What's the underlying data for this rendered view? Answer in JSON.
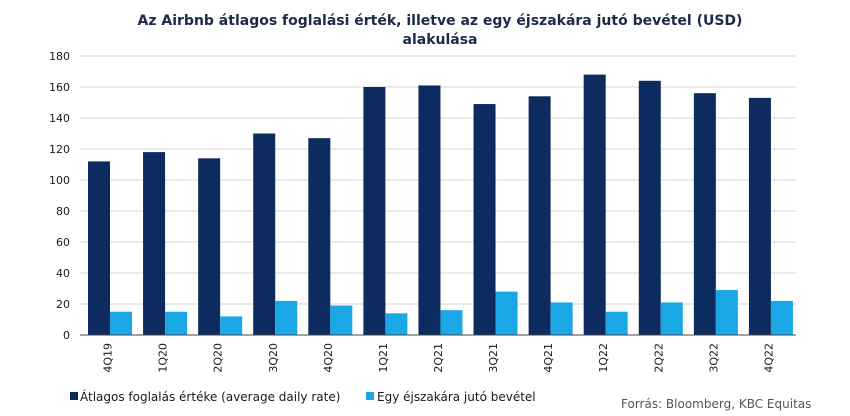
{
  "chart_data": {
    "type": "bar",
    "title_line1": "Az Airbnb átlagos foglalási érték, illetve  az egy éjszakára jutó bevétel  (USD)",
    "title_line2": "alakulása",
    "categories": [
      "4Q19",
      "1Q20",
      "2Q20",
      "3Q20",
      "4Q20",
      "1Q21",
      "2Q21",
      "3Q21",
      "4Q21",
      "1Q22",
      "2Q22",
      "3Q22",
      "4Q22"
    ],
    "series": [
      {
        "name": "Átlagos foglalás értéke (average daily rate)",
        "color": "#0d2b5e",
        "values": [
          112,
          118,
          114,
          130,
          127,
          160,
          161,
          149,
          154,
          168,
          164,
          156,
          153
        ]
      },
      {
        "name": "Egy éjszakára jutó bevétel",
        "color": "#19a7e6",
        "values": [
          15,
          15,
          12,
          22,
          19,
          14,
          16,
          28,
          21,
          15,
          21,
          29,
          22
        ]
      }
    ],
    "ylim": [
      0,
      180
    ],
    "yticks": [
      0,
      20,
      40,
      60,
      80,
      100,
      120,
      140,
      160,
      180
    ],
    "grid": true,
    "legend_position": "bottom-left",
    "source": "Forrás: Bloomberg,  KBC Equitas"
  }
}
